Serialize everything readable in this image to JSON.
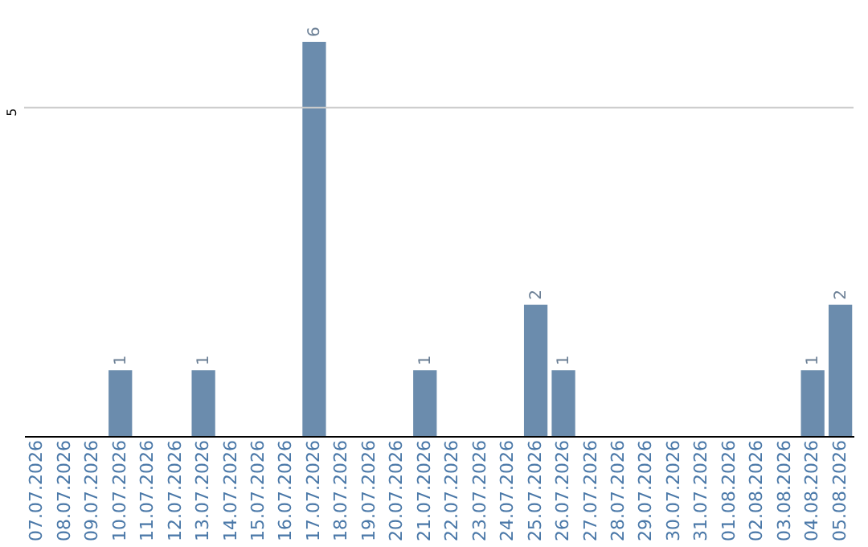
{
  "chart_data": {
    "type": "bar",
    "categories": [
      "07.07.2026",
      "08.07.2026",
      "09.07.2026",
      "10.07.2026",
      "11.07.2026",
      "12.07.2026",
      "13.07.2026",
      "14.07.2026",
      "15.07.2026",
      "16.07.2026",
      "17.07.2026",
      "18.07.2026",
      "19.07.2026",
      "20.07.2026",
      "21.07.2026",
      "22.07.2026",
      "23.07.2026",
      "24.07.2026",
      "25.07.2026",
      "26.07.2026",
      "27.07.2026",
      "28.07.2026",
      "29.07.2026",
      "30.07.2026",
      "31.07.2026",
      "01.08.2026",
      "02.08.2026",
      "03.08.2026",
      "04.08.2026",
      "05.08.2026"
    ],
    "values": [
      null,
      null,
      null,
      1,
      null,
      null,
      1,
      null,
      null,
      null,
      6,
      null,
      null,
      null,
      1,
      null,
      null,
      null,
      2,
      1,
      null,
      null,
      null,
      null,
      null,
      null,
      null,
      null,
      1,
      2
    ],
    "color": "#6b8cad",
    "ref_lines": [
      {
        "axis": "y",
        "value": 5,
        "label": "5",
        "color": "#cccccc"
      }
    ],
    "data_labels": true
  }
}
